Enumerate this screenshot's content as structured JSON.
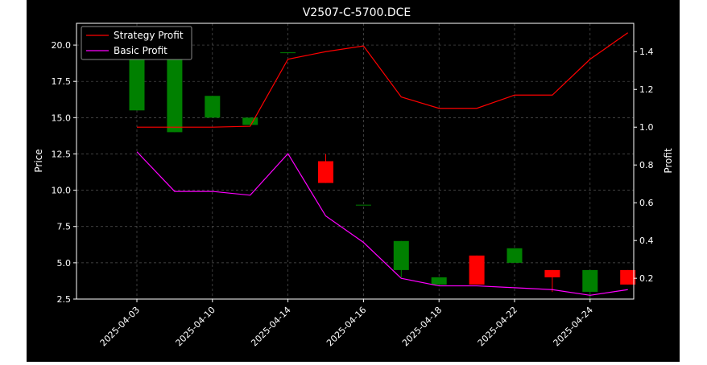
{
  "chart_data": {
    "type": "candlestick",
    "title": "V2507-C-5700.DCE",
    "xlabel": "",
    "ylabel_left": "Price",
    "ylabel_right": "Profit",
    "ylim_left": [
      2.5,
      21.5
    ],
    "ylim_right": [
      0.09,
      1.55
    ],
    "yticks_left": [
      "2.5",
      "5.0",
      "7.5",
      "10.0",
      "12.5",
      "15.0",
      "17.5",
      "20.0"
    ],
    "yticks_right": [
      "0.2",
      "0.4",
      "0.6",
      "0.8",
      "1.0",
      "1.2",
      "1.4"
    ],
    "xtick_labels": [
      "2025-04-03",
      "2025-04-10",
      "2025-04-14",
      "2025-04-16",
      "2025-04-18",
      "2025-04-22",
      "2025-04-24"
    ],
    "grid": true,
    "legend_position": "top-left",
    "candles": [
      {
        "open": 15.5,
        "high": 20.5,
        "low": 15.5,
        "close": 20.5
      },
      {
        "open": 14.0,
        "high": 20.5,
        "low": 14.0,
        "close": 20.5
      },
      {
        "open": 15.0,
        "high": 16.5,
        "low": 15.0,
        "close": 16.5
      },
      {
        "open": 14.5,
        "high": 15.0,
        "low": 14.5,
        "close": 15.0
      },
      {
        "open": 19.5,
        "high": 19.5,
        "low": 19.5,
        "close": 19.5
      },
      {
        "open": 12.0,
        "high": 12.5,
        "low": 10.5,
        "close": 10.5
      },
      {
        "open": 9.0,
        "high": 9.0,
        "low": 9.0,
        "close": 9.0
      },
      {
        "open": 4.5,
        "high": 6.5,
        "low": 4.0,
        "close": 6.5
      },
      {
        "open": 3.5,
        "high": 4.0,
        "low": 3.5,
        "close": 4.0
      },
      {
        "open": 5.5,
        "high": 5.5,
        "low": 3.5,
        "close": 3.5
      },
      {
        "open": 5.0,
        "high": 6.0,
        "low": 5.0,
        "close": 6.0
      },
      {
        "open": 4.5,
        "high": 4.5,
        "low": 3.0,
        "close": 4.0
      },
      {
        "open": 3.0,
        "high": 4.5,
        "low": 2.5,
        "close": 4.5
      },
      {
        "open": 4.5,
        "high": 4.5,
        "low": 3.5,
        "close": 3.5
      }
    ],
    "series": [
      {
        "name": "Strategy Profit",
        "color": "#ff0000",
        "values": [
          1.0,
          1.0,
          1.0,
          1.005,
          1.36,
          1.4,
          1.43,
          1.16,
          1.1,
          1.1,
          1.17,
          1.17,
          1.36,
          1.5
        ]
      },
      {
        "name": "Basic Profit",
        "color": "#ff00ff",
        "values": [
          0.87,
          0.66,
          0.66,
          0.64,
          0.86,
          0.53,
          0.39,
          0.2,
          0.16,
          0.16,
          0.15,
          0.14,
          0.11,
          0.14
        ]
      }
    ],
    "colors": {
      "up": "#008000",
      "down": "#ff0000",
      "background": "#000000",
      "text": "#ffffff",
      "grid": "#555555"
    }
  }
}
